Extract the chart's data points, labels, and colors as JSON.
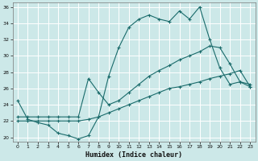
{
  "xlabel": "Humidex (Indice chaleur)",
  "bg_color": "#cce8e8",
  "grid_color": "#ffffff",
  "line_color": "#1a6b6b",
  "xlim": [
    -0.5,
    23.5
  ],
  "ylim": [
    19.5,
    36.5
  ],
  "xticks": [
    0,
    1,
    2,
    3,
    4,
    5,
    6,
    7,
    8,
    9,
    10,
    11,
    12,
    13,
    14,
    15,
    16,
    17,
    18,
    19,
    20,
    21,
    22,
    23
  ],
  "yticks": [
    20,
    22,
    24,
    26,
    28,
    30,
    32,
    34,
    36
  ],
  "line1_x": [
    0,
    1,
    2,
    3,
    4,
    5,
    6,
    7,
    8,
    9,
    10,
    11,
    12,
    13,
    14,
    15,
    16,
    17,
    18,
    19,
    20,
    21,
    22,
    23
  ],
  "line1_y": [
    24.5,
    22.2,
    21.8,
    21.5,
    20.5,
    20.2,
    19.8,
    20.2,
    22.5,
    27.5,
    31.0,
    33.5,
    34.5,
    35.0,
    34.5,
    34.2,
    35.5,
    34.5,
    36.0,
    32.0,
    28.5,
    26.5,
    26.8,
    26.5
  ],
  "line2_x": [
    0,
    1,
    2,
    3,
    4,
    5,
    6,
    7,
    8,
    9,
    10,
    11,
    12,
    13,
    14,
    15,
    16,
    17,
    18,
    19,
    20,
    21,
    22,
    23
  ],
  "line2_y": [
    22.5,
    22.5,
    22.5,
    22.5,
    22.5,
    22.5,
    22.5,
    27.2,
    25.5,
    24.0,
    24.5,
    25.5,
    26.5,
    27.5,
    28.2,
    28.8,
    29.5,
    30.0,
    30.5,
    31.2,
    31.0,
    29.0,
    26.8,
    26.2
  ],
  "line3_x": [
    0,
    1,
    2,
    3,
    4,
    5,
    6,
    7,
    8,
    9,
    10,
    11,
    12,
    13,
    14,
    15,
    16,
    17,
    18,
    19,
    20,
    21,
    22,
    23
  ],
  "line3_y": [
    22.0,
    22.0,
    22.0,
    22.0,
    22.0,
    22.0,
    22.0,
    22.2,
    22.5,
    23.0,
    23.5,
    24.0,
    24.5,
    25.0,
    25.5,
    26.0,
    26.2,
    26.5,
    26.8,
    27.2,
    27.5,
    27.8,
    28.2,
    26.2
  ]
}
